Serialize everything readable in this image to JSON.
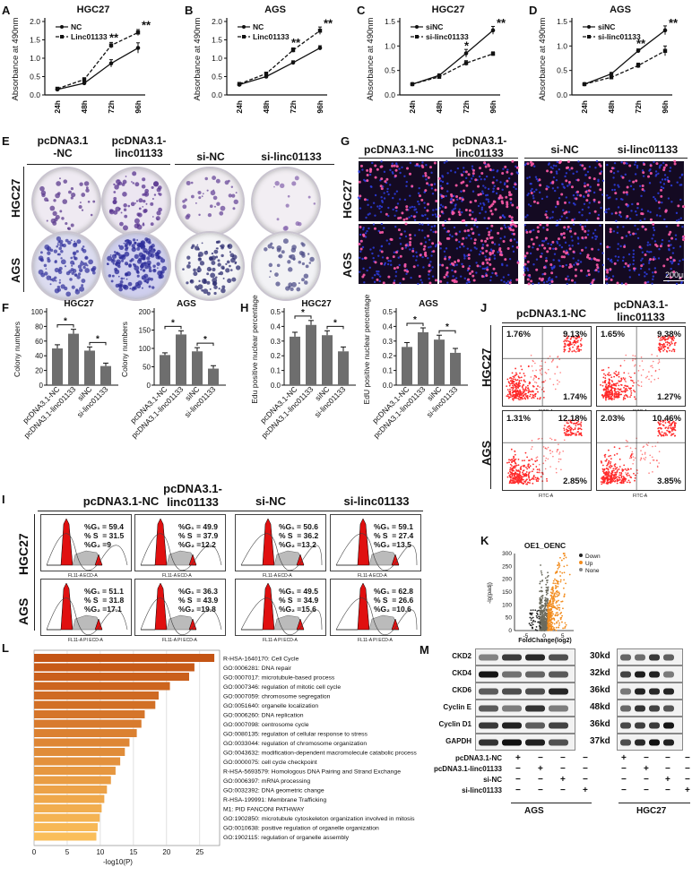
{
  "panels": {
    "A": "A",
    "B": "B",
    "C": "C",
    "D": "D",
    "E": "E",
    "F": "F",
    "G": "G",
    "H": "H",
    "I": "I",
    "J": "J",
    "K": "K",
    "L": "L",
    "M": "M"
  },
  "growth": {
    "ylabel": "Absorbance at 490nm",
    "charts": [
      {
        "title": "HGC27",
        "legend": [
          "NC",
          "Linc01133"
        ],
        "stars": [
          "**",
          "**"
        ]
      },
      {
        "title": "AGS",
        "legend": [
          "NC",
          "Linc01133"
        ],
        "stars": [
          "**",
          "**"
        ]
      },
      {
        "title": "HGC27",
        "legend": [
          "siNC",
          "si-linc01133"
        ],
        "stars": [
          "*",
          "**"
        ]
      },
      {
        "title": "AGS",
        "legend": [
          "siNC",
          "si-linc01133"
        ],
        "stars": [
          "**",
          "**"
        ]
      }
    ]
  },
  "colony": {
    "col_headers": [
      "pcDNA3.1\n-NC",
      "pcDNA3.1-\nlinc01133",
      "si-NC",
      "si-linc01133"
    ],
    "row_labels": [
      "HGC27",
      "AGS"
    ]
  },
  "edu_images": {
    "col_headers": [
      "pcDNA3.1-NC",
      "pcDNA3.1-\nlinc01133",
      "si-NC",
      "si-linc01133"
    ],
    "row_labels": [
      "HGC27",
      "AGS"
    ],
    "scale": "200μm"
  },
  "flow": {
    "col_headers": [
      "pcDNA3.1-NC",
      "pcDNA3.1-\nlinc01133"
    ],
    "row_labels": [
      "HGC27",
      "AGS"
    ],
    "plots": [
      {
        "ul": "1.76%",
        "ur": "9.13%",
        "lr": "1.74%"
      },
      {
        "ul": "1.65%",
        "ur": "9.38%",
        "lr": "1.27%"
      },
      {
        "ul": "1.31%",
        "ur": "12.18%",
        "lr": "2.85%"
      },
      {
        "ul": "2.03%",
        "ur": "10.46%",
        "lr": "3.85%"
      }
    ],
    "xaxis": "FITC-A"
  },
  "cell_cycle": {
    "col_headers": [
      "pcDNA3.1-NC",
      "pcDNA3.1-\nlinc01133",
      "si-NC",
      "si-linc01133"
    ],
    "row_labels": [
      "HGC27",
      "AGS"
    ],
    "plots": [
      {
        "g1": "%G₁ = 59.4",
        "s": "% S  = 31.5",
        "g2": "%G₂ =9"
      },
      {
        "g1": "%G₁ = 49.9",
        "s": "% S  = 37.9",
        "g2": "%G₂ =12.2"
      },
      {
        "g1": "%G₁ = 50.6",
        "s": "% S  = 36.2",
        "g2": "%G₂ =13.2"
      },
      {
        "g1": "%G₁ = 59.1",
        "s": "% S  = 27.4",
        "g2": "%G₂ =13.5"
      },
      {
        "g1": "%G₁ = 51.1",
        "s": "% S  = 31.8",
        "g2": "%G₂ =17.1"
      },
      {
        "g1": "%G₁ = 36.3",
        "s": "% S  = 43.9",
        "g2": "%G₂ =19.8"
      },
      {
        "g1": "%G₁ = 49.5",
        "s": "% S  = 34.9",
        "g2": "%G₂ =15.6"
      },
      {
        "g1": "%G₁ = 62.8",
        "s": "% S  = 26.6",
        "g2": "%G₂ =10.6"
      }
    ],
    "xaxis_top": "FL11-A ECD-A",
    "xaxis_bottom": "FL11-A PI ECD-A",
    "yaxis": "Number"
  },
  "volcano": {
    "title": "OE1_OENC",
    "xlabel": "FoldChange(log2)",
    "ylabel": "-lg(padj)",
    "legend": [
      {
        "label": "Down",
        "color": "#222222"
      },
      {
        "label": "Up",
        "color": "#f28c1e"
      },
      {
        "label": "None",
        "color": "#888888"
      }
    ]
  },
  "blot": {
    "proteins": [
      "CKD2",
      "CKD4",
      "CKD6",
      "Cyclin E",
      "Cyclin D1",
      "GAPDH"
    ],
    "kd": [
      "30kd",
      "32kd",
      "36kd",
      "48kd",
      "36kd",
      "37kd"
    ],
    "conditions": [
      "pcDNA3.1-NC",
      "pcDNA3.1-linc01133",
      "si-NC",
      "si-linc01133"
    ],
    "signs": [
      "+",
      "−",
      "−",
      "−"
    ],
    "cells": [
      "AGS",
      "HGC27"
    ]
  },
  "chart_data": [
    {
      "type": "line",
      "title": "HGC27",
      "categories": [
        "24h",
        "48h",
        "72h",
        "96h"
      ],
      "ylabel": "Absorbance at 490nm",
      "ylim": [
        0,
        2.0
      ],
      "series": [
        {
          "name": "NC",
          "values": [
            0.15,
            0.32,
            0.86,
            1.28
          ],
          "errors": [
            0.03,
            0.04,
            0.1,
            0.14
          ]
        },
        {
          "name": "Linc01133",
          "values": [
            0.17,
            0.42,
            1.35,
            1.7
          ],
          "errors": [
            0.03,
            0.05,
            0.08,
            0.08
          ]
        }
      ]
    },
    {
      "type": "line",
      "title": "AGS",
      "categories": [
        "24h",
        "48h",
        "72h",
        "96h"
      ],
      "ylabel": "Absorbance at 490nm",
      "ylim": [
        0,
        2.0
      ],
      "series": [
        {
          "name": "NC",
          "values": [
            0.28,
            0.5,
            0.88,
            1.28
          ],
          "errors": [
            0.02,
            0.04,
            0.05,
            0.06
          ]
        },
        {
          "name": "Linc01133",
          "values": [
            0.3,
            0.58,
            1.22,
            1.75
          ],
          "errors": [
            0.02,
            0.04,
            0.06,
            0.1
          ]
        }
      ]
    },
    {
      "type": "line",
      "title": "HGC27",
      "categories": [
        "24h",
        "48h",
        "72h",
        "96h"
      ],
      "ylabel": "Absorbance at 490nm",
      "ylim": [
        0,
        1.5
      ],
      "series": [
        {
          "name": "siNC",
          "values": [
            0.22,
            0.4,
            0.85,
            1.32
          ],
          "errors": [
            0.02,
            0.03,
            0.08,
            0.08
          ]
        },
        {
          "name": "si-linc01133",
          "values": [
            0.22,
            0.37,
            0.65,
            0.84
          ],
          "errors": [
            0.02,
            0.03,
            0.05,
            0.04
          ]
        }
      ]
    },
    {
      "type": "line",
      "title": "AGS",
      "categories": [
        "24h",
        "48h",
        "72h",
        "96h"
      ],
      "ylabel": "Absorbance at 490nm",
      "ylim": [
        0,
        1.5
      ],
      "series": [
        {
          "name": "siNC",
          "values": [
            0.22,
            0.43,
            0.9,
            1.32
          ],
          "errors": [
            0.02,
            0.03,
            0.04,
            0.09
          ]
        },
        {
          "name": "si-linc01133",
          "values": [
            0.22,
            0.36,
            0.6,
            0.9
          ],
          "errors": [
            0.02,
            0.03,
            0.05,
            0.1
          ]
        }
      ]
    },
    {
      "type": "bar",
      "title": "HGC27",
      "ylabel": "Colony numbers",
      "ylim": [
        0,
        100
      ],
      "categories": [
        "pcDNA3.1-NC",
        "pcDNA3.1-linc01133",
        "siNC",
        "si-linc01133"
      ],
      "values": [
        50,
        70,
        47,
        26
      ],
      "errors": [
        5,
        6,
        5,
        4
      ],
      "sig": [
        "*",
        "*"
      ]
    },
    {
      "type": "bar",
      "title": "AGS",
      "ylabel": "Colony numbers",
      "ylim": [
        0,
        200
      ],
      "categories": [
        "pcDNA3.1-NC",
        "pcDNA3.1-linc01133",
        "siNC",
        "si-linc01133"
      ],
      "values": [
        82,
        138,
        92,
        45
      ],
      "errors": [
        6,
        10,
        10,
        8
      ],
      "sig": [
        "*",
        "*"
      ]
    },
    {
      "type": "bar",
      "title": "HGC27",
      "ylabel": "Edu positive nuclear percentage",
      "ylim": [
        0,
        0.5
      ],
      "categories": [
        "pcDNA3.1-NC",
        "pcDNA3.1-linc01133",
        "siNC",
        "si-linc01133"
      ],
      "values": [
        0.33,
        0.41,
        0.34,
        0.23
      ],
      "errors": [
        0.03,
        0.03,
        0.03,
        0.03
      ],
      "sig": [
        "*",
        "*"
      ]
    },
    {
      "type": "bar",
      "title": "AGS",
      "ylabel": "EdU positive nuclear percentage",
      "ylim": [
        0,
        0.5
      ],
      "categories": [
        "pcDNA3.1-NC",
        "pcDNA3.1-linc01133",
        "siNC",
        "si-linc01133"
      ],
      "values": [
        0.26,
        0.36,
        0.31,
        0.22
      ],
      "errors": [
        0.03,
        0.03,
        0.03,
        0.03
      ],
      "sig": [
        "*",
        "*"
      ]
    },
    {
      "type": "scatter",
      "title": "OE1_OENC",
      "xlabel": "FoldChange(log2)",
      "ylabel": "-lg(padj)",
      "xlim": [
        -8,
        8
      ],
      "ylim": [
        0,
        300
      ]
    },
    {
      "type": "bar",
      "orientation": "horizontal",
      "xlabel": "-log10(P)",
      "xlim": [
        0,
        28
      ],
      "categories": [
        "R-HSA-1640170: Cell Cycle",
        "GO:0006281: DNA repair",
        "GO:0007017: microtubule-based process",
        "GO:0007346: regulation of mitotic cell cycle",
        "GO:0007059: chromosome segregation",
        "GO:0051640: organelle localization",
        "GO:0006260: DNA replication",
        "GO:0007098: centrosome cycle",
        "GO:0080135: regulation of cellular response to stress",
        "GO:0033044: regulation of chromosome organization",
        "GO:0043632: modification-dependent macromolecule catabolic process",
        "GO:0000075: cell cycle checkpoint",
        "R-HSA-5693579: Homologous DNA Pairing and Strand Exchange",
        "GO:0006397: mRNA processing",
        "GO:0032392: DNA geometric change",
        "R-HSA-199991: Membrane Trafficking",
        "M1: PID FANCONI PATHWAY",
        "GO:1902850: microtubule cytoskeleton organization involved in mitosis",
        "GO:0010638: positive regulation of organelle organization",
        "GO:1902115: regulation of organelle assembly"
      ],
      "values": [
        27.2,
        24.2,
        23.4,
        20.5,
        18.8,
        18.3,
        16.7,
        16.2,
        15.5,
        14.4,
        13.7,
        13.0,
        12.3,
        11.6,
        11.0,
        10.6,
        10.2,
        9.9,
        9.6,
        9.4
      ],
      "xticks": [
        0,
        5,
        10,
        15,
        20,
        25
      ]
    }
  ]
}
